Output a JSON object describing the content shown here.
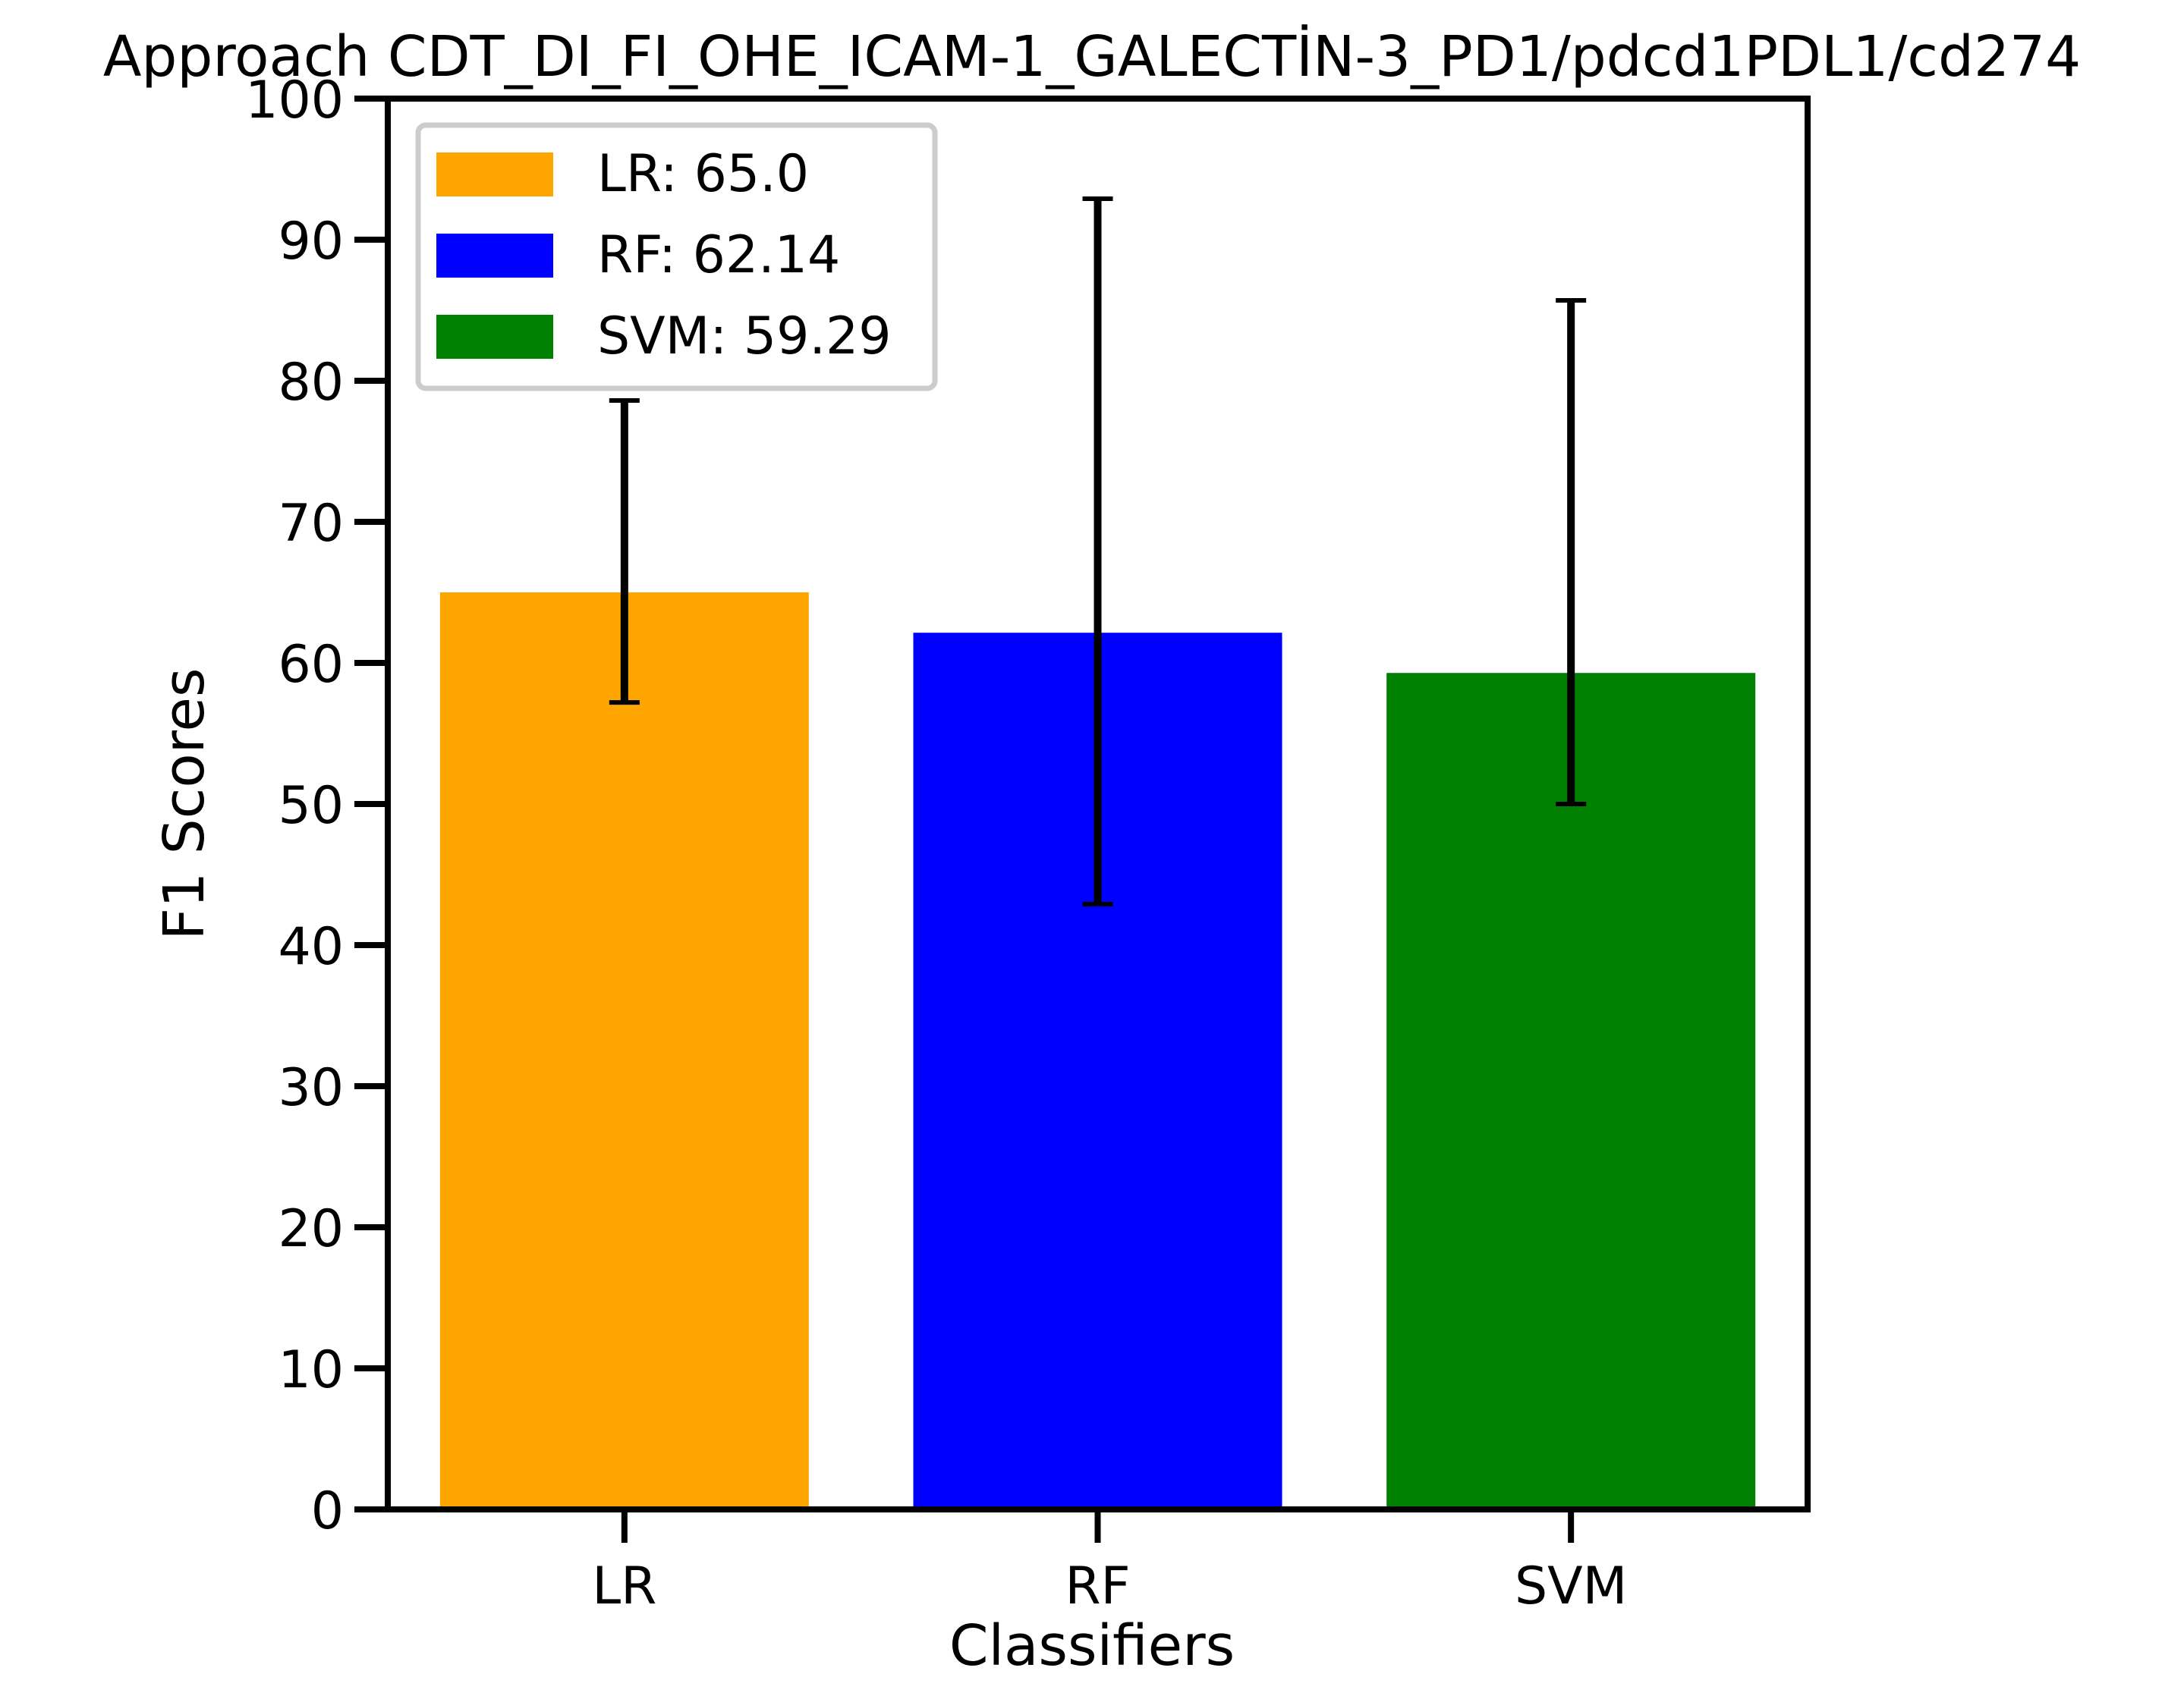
{
  "chart_data": {
    "type": "bar",
    "title": "Approach CDT_DI_FI_OHE_ICAM-1_GALECTİN-3_PD1/pdcd1PDL1/cd274",
    "xlabel": "Classifiers",
    "ylabel": "F1 Scores",
    "categories": [
      "LR",
      "RF",
      "SVM"
    ],
    "values": [
      65.0,
      62.14,
      59.29
    ],
    "error_bars": [
      {
        "low": 57.2,
        "high": 78.6
      },
      {
        "low": 42.9,
        "high": 92.9
      },
      {
        "low": 50.0,
        "high": 85.7
      }
    ],
    "colors": [
      "#ffa500",
      "#0000ff",
      "#008000"
    ],
    "ylim": [
      0,
      100
    ],
    "yticks": [
      0,
      10,
      20,
      30,
      40,
      50,
      60,
      70,
      80,
      90,
      100
    ],
    "grid": false,
    "legend": {
      "position": "top-left",
      "entries": [
        "LR: 65.0",
        "RF: 62.14",
        "SVM: 59.29"
      ]
    }
  }
}
